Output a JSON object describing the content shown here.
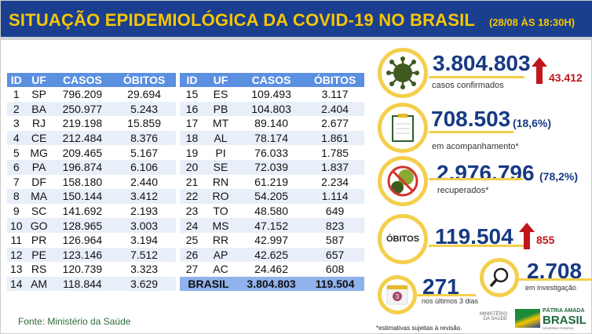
{
  "header": {
    "title": "SITUAÇÃO EPIDEMIOLÓGICA DA COVID-19 NO BRASIL",
    "date": "(28/08 ÀS 18:30H)"
  },
  "table": {
    "columns": [
      "ID",
      "UF",
      "CASOS",
      "ÓBITOS"
    ],
    "left": [
      [
        "1",
        "SP",
        "796.209",
        "29.694"
      ],
      [
        "2",
        "BA",
        "250.977",
        "5.243"
      ],
      [
        "3",
        "RJ",
        "219.198",
        "15.859"
      ],
      [
        "4",
        "CE",
        "212.484",
        "8.376"
      ],
      [
        "5",
        "MG",
        "209.465",
        "5.167"
      ],
      [
        "6",
        "PA",
        "196.874",
        "6.106"
      ],
      [
        "7",
        "DF",
        "158.180",
        "2.440"
      ],
      [
        "8",
        "MA",
        "150.144",
        "3.412"
      ],
      [
        "9",
        "SC",
        "141.692",
        "2.193"
      ],
      [
        "10",
        "GO",
        "128.965",
        "3.003"
      ],
      [
        "11",
        "PR",
        "126.964",
        "3.194"
      ],
      [
        "12",
        "PE",
        "123.146",
        "7.512"
      ],
      [
        "13",
        "RS",
        "120.739",
        "3.323"
      ],
      [
        "14",
        "AM",
        "118.844",
        "3.629"
      ]
    ],
    "right": [
      [
        "15",
        "ES",
        "109.493",
        "3.117"
      ],
      [
        "16",
        "PB",
        "104.803",
        "2.404"
      ],
      [
        "17",
        "MT",
        "89.140",
        "2.677"
      ],
      [
        "18",
        "AL",
        "78.174",
        "1.861"
      ],
      [
        "19",
        "PI",
        "76.033",
        "1.785"
      ],
      [
        "20",
        "SE",
        "72.039",
        "1.837"
      ],
      [
        "21",
        "RN",
        "61.219",
        "2.234"
      ],
      [
        "22",
        "RO",
        "54.205",
        "1.114"
      ],
      [
        "23",
        "TO",
        "48.580",
        "649"
      ],
      [
        "24",
        "MS",
        "47.152",
        "823"
      ],
      [
        "25",
        "RR",
        "42.997",
        "587"
      ],
      [
        "26",
        "AP",
        "42.625",
        "657"
      ],
      [
        "27",
        "AC",
        "24.462",
        "608"
      ]
    ],
    "total": {
      "label": "BRASIL",
      "casos": "3.804.803",
      "obitos": "119.504"
    }
  },
  "stats": {
    "confirmados": {
      "value": "3.804.803",
      "label": "casos confirmados",
      "increase": "43.412",
      "icon": "virus-icon"
    },
    "acompanhamento": {
      "value": "708.503",
      "pct": "(18,6%)",
      "label": "em acompanhamento*",
      "icon": "clipboard-icon"
    },
    "recuperados": {
      "value": "2.976.796",
      "pct": "(78,2%)",
      "label": "recuperados*",
      "icon": "no-virus-icon"
    },
    "obitos": {
      "badge": "ÓBITOS",
      "value": "119.504",
      "increase": "855"
    },
    "ultimos": {
      "value": "271",
      "label": "nos últimos 3 dias",
      "icon": "calendar-icon",
      "icon_text": "3"
    },
    "investigacao": {
      "value": "2.708",
      "label": "em investigação",
      "icon": "magnifier-icon"
    }
  },
  "footer": {
    "source": "Fonte: Ministério da Saúde",
    "note": "*estimativas sujeitas à revisão.",
    "ministry": "MINISTÉRIO DA SAÚDE",
    "brand_top": "PÁTRIA AMADA",
    "brand": "BRASIL",
    "brand_sub": "GOVERNO FEDERAL"
  },
  "colors": {
    "header": "#1a3f8f",
    "title": "#f7c600",
    "accent": "#f4cf4c",
    "number": "#173a84",
    "increase": "#c0161c"
  }
}
